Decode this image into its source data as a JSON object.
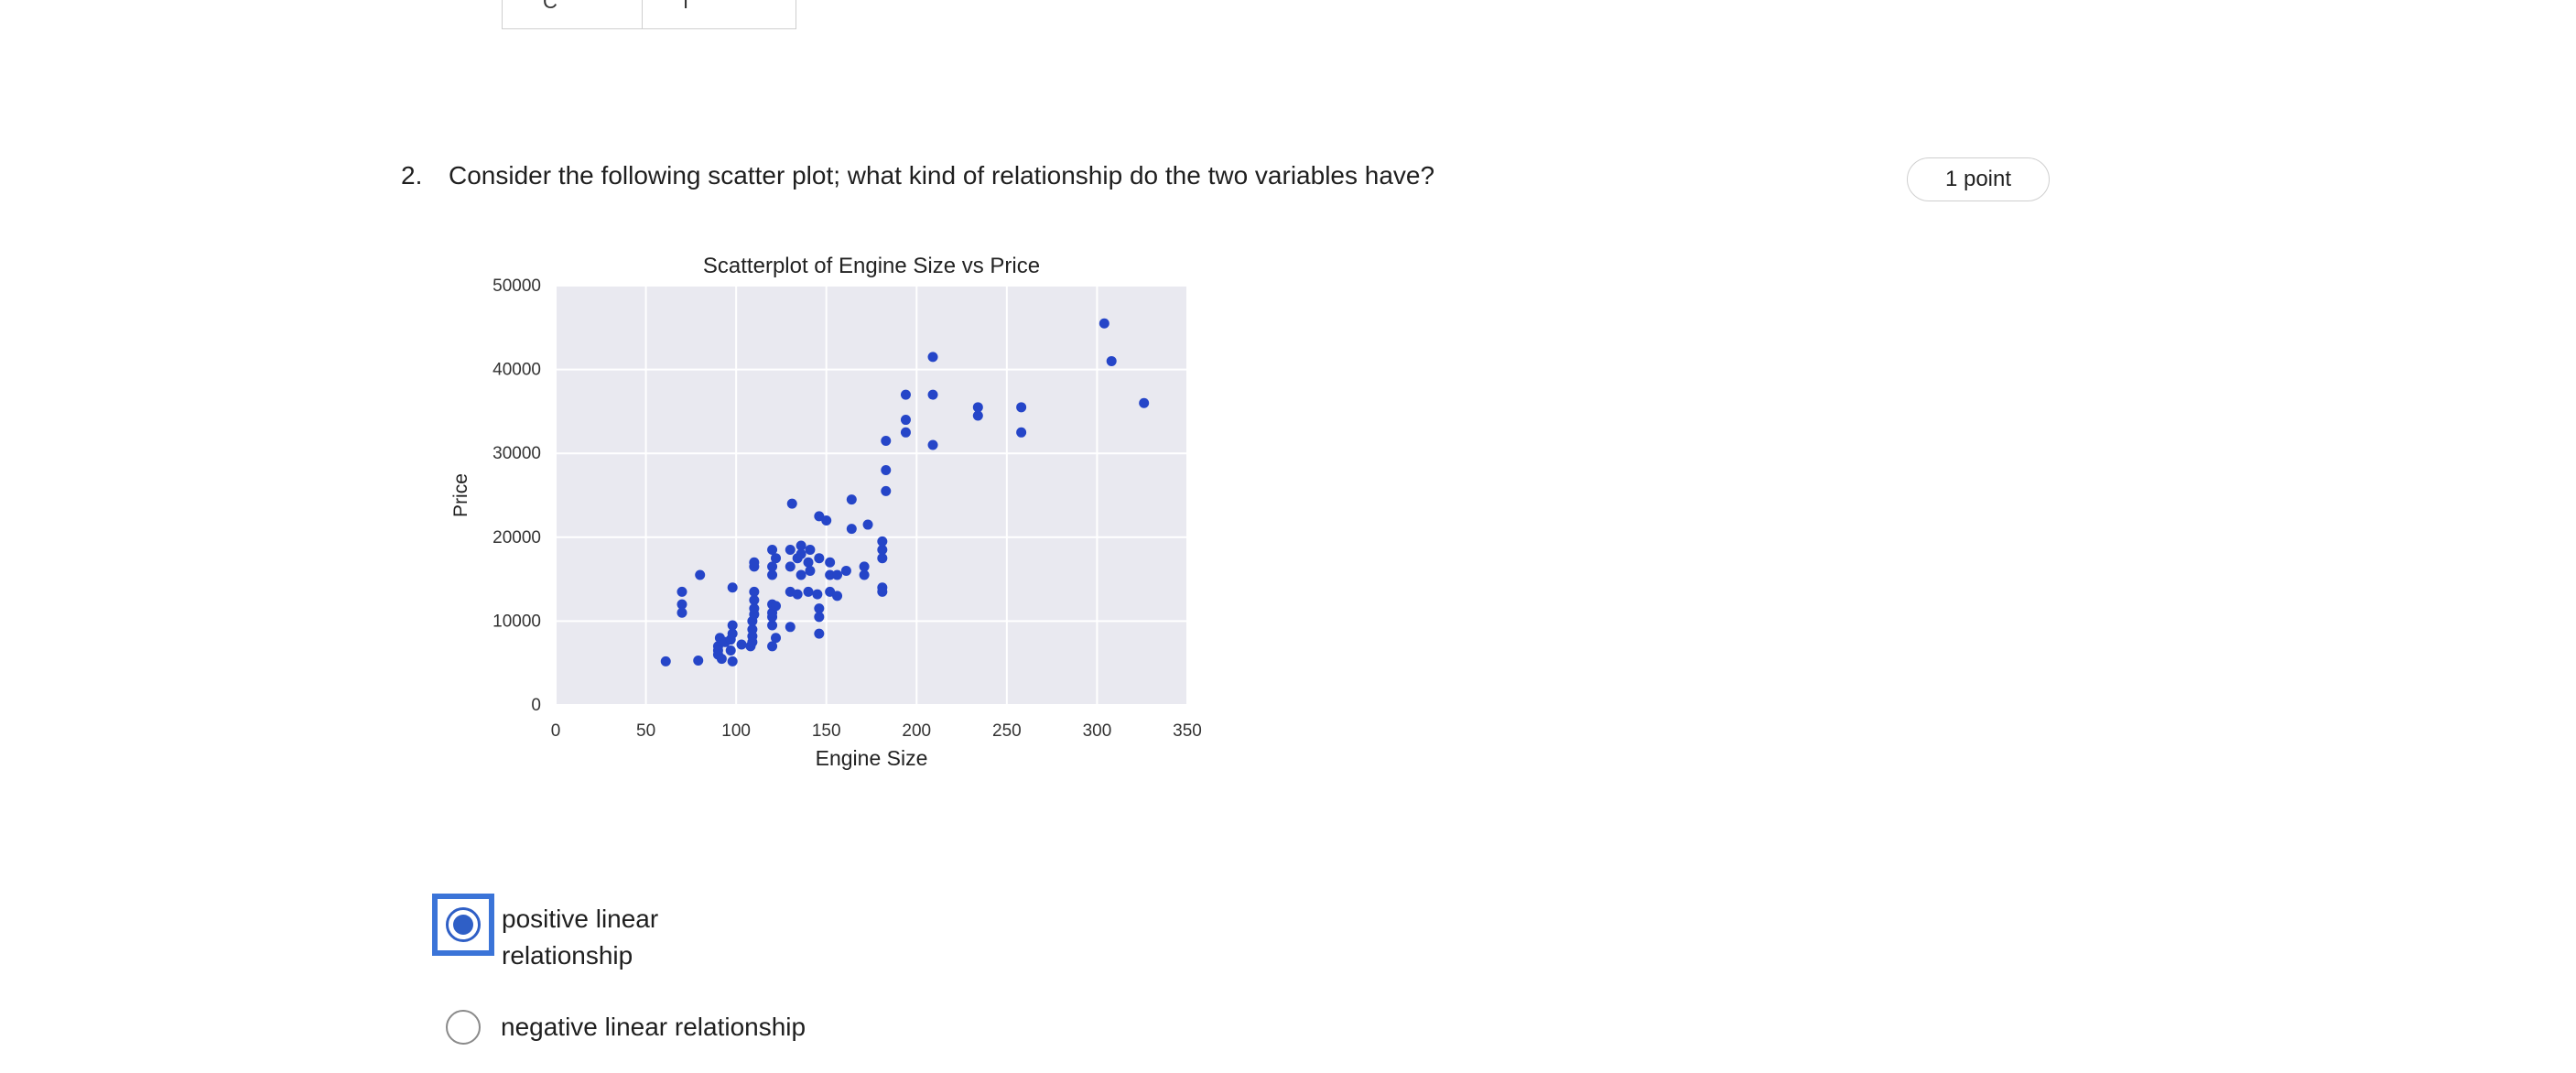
{
  "previous_table": {
    "cell_1": "C",
    "cell_2": "I"
  },
  "question": {
    "number": "2.",
    "text": "Consider the following scatter plot; what kind of relationship do the two variables have?",
    "points": "1 point"
  },
  "options": [
    {
      "label": "positive linear relationship",
      "selected": true
    },
    {
      "label": "negative linear relationship",
      "selected": false
    }
  ],
  "chart_data": {
    "type": "scatter",
    "title": "Scatterplot of Engine Size vs Price",
    "xlabel": "Engine Size",
    "ylabel": "Price",
    "xlim": [
      0,
      350
    ],
    "ylim": [
      0,
      50000
    ],
    "xticks": [
      0,
      50,
      100,
      150,
      200,
      250,
      300,
      350
    ],
    "yticks": [
      0,
      10000,
      20000,
      30000,
      40000,
      50000
    ],
    "grid": true,
    "point_color": "#2545c8",
    "background_color": "#e9e9f0",
    "points": [
      [
        61,
        5200
      ],
      [
        70,
        13500
      ],
      [
        70,
        12000
      ],
      [
        70,
        11000
      ],
      [
        79,
        5300
      ],
      [
        80,
        15500
      ],
      [
        90,
        7000
      ],
      [
        90,
        6500
      ],
      [
        90,
        6000
      ],
      [
        91,
        8000
      ],
      [
        92,
        5500
      ],
      [
        94,
        7500
      ],
      [
        97,
        6500
      ],
      [
        97,
        7800
      ],
      [
        98,
        5200
      ],
      [
        98,
        8500
      ],
      [
        98,
        9500
      ],
      [
        98,
        14000
      ],
      [
        103,
        7200
      ],
      [
        108,
        7000
      ],
      [
        109,
        7500
      ],
      [
        109,
        8200
      ],
      [
        109,
        9000
      ],
      [
        109,
        10000
      ],
      [
        110,
        10800
      ],
      [
        110,
        11500
      ],
      [
        110,
        16500
      ],
      [
        110,
        17000
      ],
      [
        110,
        12500
      ],
      [
        110,
        13500
      ],
      [
        120,
        7000
      ],
      [
        120,
        9500
      ],
      [
        120,
        10500
      ],
      [
        120,
        11000
      ],
      [
        120,
        12000
      ],
      [
        120,
        15500
      ],
      [
        120,
        16500
      ],
      [
        120,
        18500
      ],
      [
        122,
        8000
      ],
      [
        122,
        11800
      ],
      [
        122,
        17500
      ],
      [
        130,
        9300
      ],
      [
        130,
        13500
      ],
      [
        130,
        16500
      ],
      [
        130,
        18500
      ],
      [
        131,
        24000
      ],
      [
        134,
        13200
      ],
      [
        134,
        17500
      ],
      [
        136,
        15500
      ],
      [
        136,
        18000
      ],
      [
        136,
        19000
      ],
      [
        140,
        13500
      ],
      [
        140,
        17000
      ],
      [
        141,
        18500
      ],
      [
        141,
        16000
      ],
      [
        145,
        13200
      ],
      [
        146,
        10500
      ],
      [
        146,
        11500
      ],
      [
        146,
        8500
      ],
      [
        146,
        22500
      ],
      [
        146,
        17500
      ],
      [
        150,
        22000
      ],
      [
        152,
        13500
      ],
      [
        152,
        15500
      ],
      [
        152,
        17000
      ],
      [
        156,
        13000
      ],
      [
        156,
        15500
      ],
      [
        161,
        16000
      ],
      [
        164,
        21000
      ],
      [
        164,
        24500
      ],
      [
        171,
        15500
      ],
      [
        171,
        16500
      ],
      [
        173,
        21500
      ],
      [
        181,
        14000
      ],
      [
        181,
        13500
      ],
      [
        181,
        17500
      ],
      [
        181,
        18500
      ],
      [
        181,
        19500
      ],
      [
        183,
        25500
      ],
      [
        183,
        28000
      ],
      [
        183,
        31500
      ],
      [
        194,
        32500
      ],
      [
        194,
        34000
      ],
      [
        194,
        37000
      ],
      [
        209,
        41500
      ],
      [
        209,
        37000
      ],
      [
        209,
        31000
      ],
      [
        234,
        34500
      ],
      [
        234,
        35500
      ],
      [
        258,
        35500
      ],
      [
        258,
        32500
      ],
      [
        304,
        45500
      ],
      [
        308,
        41000
      ],
      [
        326,
        36000
      ]
    ]
  }
}
